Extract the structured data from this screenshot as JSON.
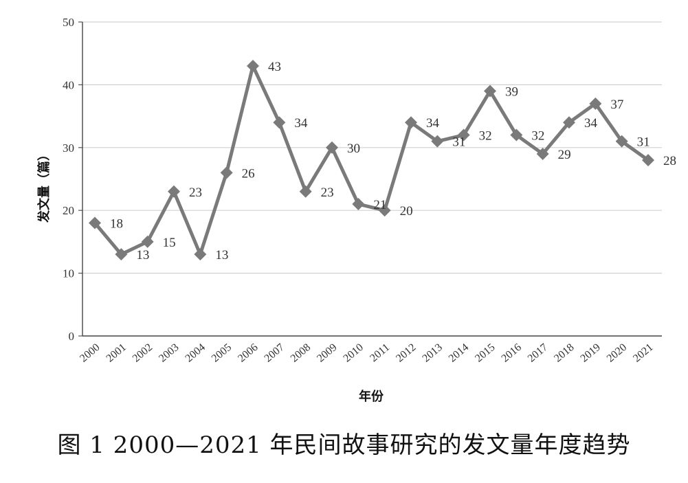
{
  "caption": "图 1 2000—2021 年民间故事研究的发文量年度趋势",
  "chart_data": {
    "type": "line",
    "title": "",
    "xlabel": "年份",
    "ylabel": "发文量（篇）",
    "ylim": [
      0,
      50
    ],
    "yticks": [
      "0",
      "10",
      "20",
      "30",
      "40",
      "50"
    ],
    "grid": true,
    "categories": [
      "2000",
      "2001",
      "2002",
      "2003",
      "2004",
      "2005",
      "2006",
      "2007",
      "2008",
      "2009",
      "2010",
      "2011",
      "2012",
      "2013",
      "2014",
      "2015",
      "2016",
      "2017",
      "2018",
      "2019",
      "2020",
      "2021"
    ],
    "values": [
      18,
      13,
      15,
      23,
      13,
      26,
      43,
      34,
      23,
      30,
      21,
      20,
      34,
      31,
      32,
      39,
      32,
      29,
      34,
      37,
      31,
      28
    ],
    "line_color": "#7a7a7a",
    "marker": "diamond"
  }
}
